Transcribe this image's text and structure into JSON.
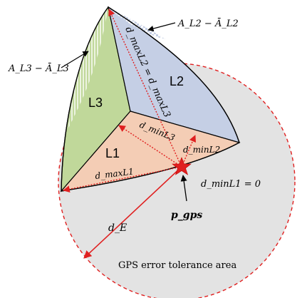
{
  "colors": {
    "l1_fill": "#f4cdb5",
    "l2_fill": "#c5cfe5",
    "l3_fill": "#c0d89a",
    "circle_fill": "#e3e3e3",
    "circle_stroke": "#e02020",
    "arrow": "#e02020"
  },
  "labels": {
    "l1": "L1",
    "l2": "L2",
    "l3": "L3",
    "al2": "A_L2 − Ā_L2",
    "al3": "A_L3 − Ā_L3",
    "dmaxl2_eq_dmaxl3": "d_maxL2 = d_maxL3",
    "dminl3": "d_minL3",
    "dminl2": "d_minL2",
    "dmaxl1": "d_maxL1",
    "dminl1": "d_minL1 = 0",
    "de": "d_E",
    "pgps": "p_gps",
    "tolerance": "GPS error tolerance area"
  }
}
